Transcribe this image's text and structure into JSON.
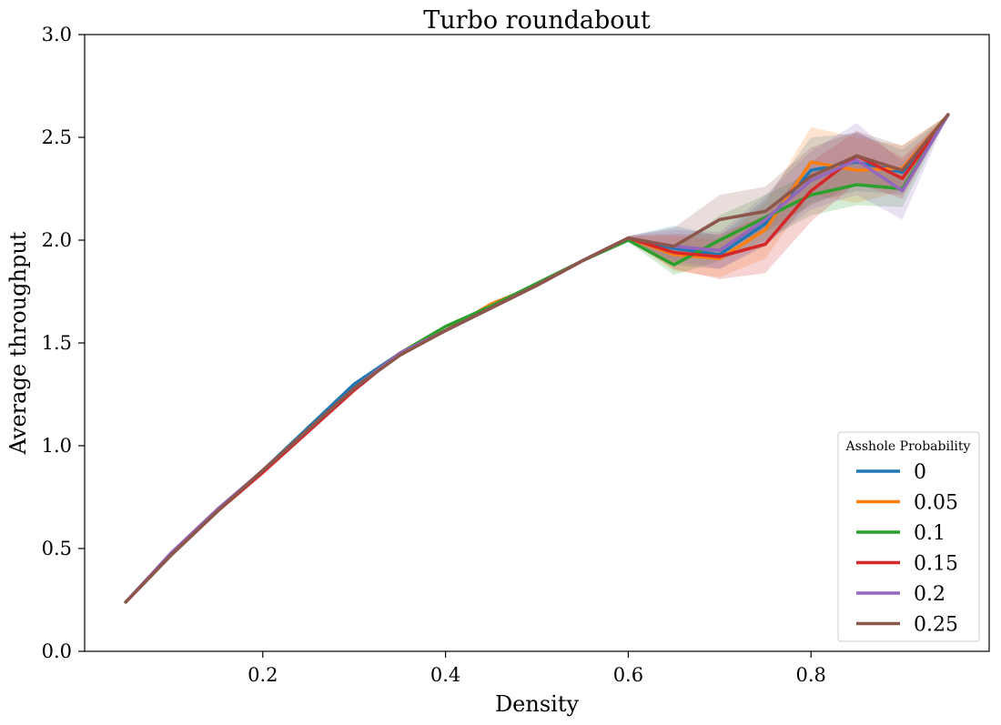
{
  "chart_data": {
    "type": "line",
    "title": "Turbo roundabout",
    "xlabel": "Density",
    "ylabel": "Average throughput",
    "xlim": [
      0.005,
      0.995
    ],
    "ylim": [
      0.0,
      3.0
    ],
    "xticks": [
      0.2,
      0.4,
      0.6,
      0.8
    ],
    "xtick_labels": [
      "0.2",
      "0.4",
      "0.6",
      "0.8"
    ],
    "yticks": [
      0.0,
      0.5,
      1.0,
      1.5,
      2.0,
      2.5,
      3.0
    ],
    "ytick_labels": [
      "0.0",
      "0.5",
      "1.0",
      "1.5",
      "2.0",
      "2.5",
      "3.0"
    ],
    "grid": false,
    "legend_title": "Asshole Probability",
    "legend_position": "bottom-right",
    "x": [
      0.05,
      0.1,
      0.15,
      0.2,
      0.25,
      0.3,
      0.35,
      0.4,
      0.45,
      0.5,
      0.55,
      0.6,
      0.65,
      0.7,
      0.75,
      0.8,
      0.85,
      0.9,
      0.95
    ],
    "series": [
      {
        "name": "0",
        "color": "#1f77b4",
        "values": [
          0.24,
          0.47,
          0.68,
          0.88,
          1.09,
          1.3,
          1.45,
          1.56,
          1.67,
          1.78,
          1.9,
          2.01,
          1.96,
          1.93,
          2.08,
          2.34,
          2.38,
          2.33,
          2.61
        ],
        "lower": [
          0.24,
          0.47,
          0.68,
          0.88,
          1.09,
          1.3,
          1.45,
          1.56,
          1.67,
          1.78,
          1.9,
          2.0,
          1.88,
          1.86,
          1.97,
          2.18,
          2.24,
          2.22,
          2.61
        ],
        "upper": [
          0.24,
          0.47,
          0.68,
          0.88,
          1.09,
          1.3,
          1.45,
          1.56,
          1.67,
          1.78,
          1.9,
          2.02,
          2.07,
          2.02,
          2.2,
          2.5,
          2.52,
          2.44,
          2.61
        ]
      },
      {
        "name": "0.05",
        "color": "#ff7f0e",
        "values": [
          0.24,
          0.47,
          0.68,
          0.88,
          1.08,
          1.28,
          1.45,
          1.56,
          1.69,
          1.78,
          1.9,
          2.01,
          1.93,
          1.91,
          2.05,
          2.38,
          2.34,
          2.35,
          2.61
        ],
        "lower": [
          0.24,
          0.47,
          0.68,
          0.88,
          1.08,
          1.28,
          1.45,
          1.56,
          1.69,
          1.78,
          1.9,
          2.0,
          1.85,
          1.82,
          1.91,
          2.22,
          2.18,
          2.24,
          2.61
        ],
        "upper": [
          0.24,
          0.47,
          0.68,
          0.88,
          1.08,
          1.28,
          1.45,
          1.56,
          1.69,
          1.78,
          1.9,
          2.02,
          2.02,
          2.0,
          2.18,
          2.55,
          2.5,
          2.46,
          2.61
        ]
      },
      {
        "name": "0.1",
        "color": "#2ca02c",
        "values": [
          0.24,
          0.47,
          0.68,
          0.88,
          1.08,
          1.28,
          1.45,
          1.58,
          1.68,
          1.79,
          1.9,
          2.0,
          1.88,
          2.0,
          2.11,
          2.22,
          2.27,
          2.25,
          2.61
        ],
        "lower": [
          0.24,
          0.47,
          0.68,
          0.88,
          1.08,
          1.28,
          1.45,
          1.58,
          1.68,
          1.79,
          1.9,
          1.99,
          1.83,
          1.9,
          2.0,
          2.12,
          2.17,
          2.16,
          2.61
        ],
        "upper": [
          0.24,
          0.47,
          0.68,
          0.88,
          1.08,
          1.28,
          1.45,
          1.58,
          1.68,
          1.79,
          1.9,
          2.01,
          1.97,
          2.12,
          2.22,
          2.33,
          2.38,
          2.35,
          2.61
        ]
      },
      {
        "name": "0.15",
        "color": "#d62728",
        "values": [
          0.24,
          0.47,
          0.68,
          0.87,
          1.07,
          1.27,
          1.45,
          1.56,
          1.67,
          1.78,
          1.9,
          2.01,
          1.94,
          1.92,
          1.98,
          2.24,
          2.41,
          2.3,
          2.61
        ],
        "lower": [
          0.24,
          0.47,
          0.68,
          0.87,
          1.07,
          1.27,
          1.45,
          1.56,
          1.67,
          1.78,
          1.9,
          2.0,
          1.86,
          1.81,
          1.84,
          2.09,
          2.28,
          2.2,
          2.61
        ],
        "upper": [
          0.24,
          0.47,
          0.68,
          0.87,
          1.07,
          1.27,
          1.45,
          1.56,
          1.67,
          1.78,
          1.9,
          2.02,
          2.03,
          2.03,
          2.12,
          2.38,
          2.53,
          2.4,
          2.61
        ]
      },
      {
        "name": "0.2",
        "color": "#9467bd",
        "values": [
          0.24,
          0.48,
          0.69,
          0.88,
          1.08,
          1.28,
          1.45,
          1.56,
          1.67,
          1.78,
          1.9,
          2.01,
          1.97,
          1.95,
          2.1,
          2.29,
          2.39,
          2.24,
          2.61
        ],
        "lower": [
          0.24,
          0.48,
          0.69,
          0.88,
          1.08,
          1.28,
          1.45,
          1.56,
          1.67,
          1.78,
          1.9,
          2.0,
          1.9,
          1.86,
          1.98,
          2.15,
          2.22,
          2.1,
          2.61
        ],
        "upper": [
          0.24,
          0.48,
          0.69,
          0.88,
          1.08,
          1.28,
          1.45,
          1.56,
          1.67,
          1.78,
          1.9,
          2.02,
          2.05,
          2.04,
          2.22,
          2.43,
          2.57,
          2.38,
          2.61
        ]
      },
      {
        "name": "0.25",
        "color": "#8c564b",
        "values": [
          0.24,
          0.47,
          0.68,
          0.88,
          1.08,
          1.28,
          1.44,
          1.56,
          1.67,
          1.78,
          1.9,
          2.01,
          1.97,
          2.1,
          2.14,
          2.31,
          2.41,
          2.34,
          2.61
        ],
        "lower": [
          0.24,
          0.47,
          0.68,
          0.88,
          1.08,
          1.28,
          1.44,
          1.56,
          1.67,
          1.78,
          1.9,
          2.0,
          1.88,
          1.96,
          2.04,
          2.17,
          2.27,
          2.24,
          2.61
        ],
        "upper": [
          0.24,
          0.47,
          0.68,
          0.88,
          1.08,
          1.28,
          1.44,
          1.56,
          1.67,
          1.78,
          1.9,
          2.02,
          2.06,
          2.22,
          2.26,
          2.45,
          2.53,
          2.46,
          2.61
        ]
      }
    ]
  }
}
